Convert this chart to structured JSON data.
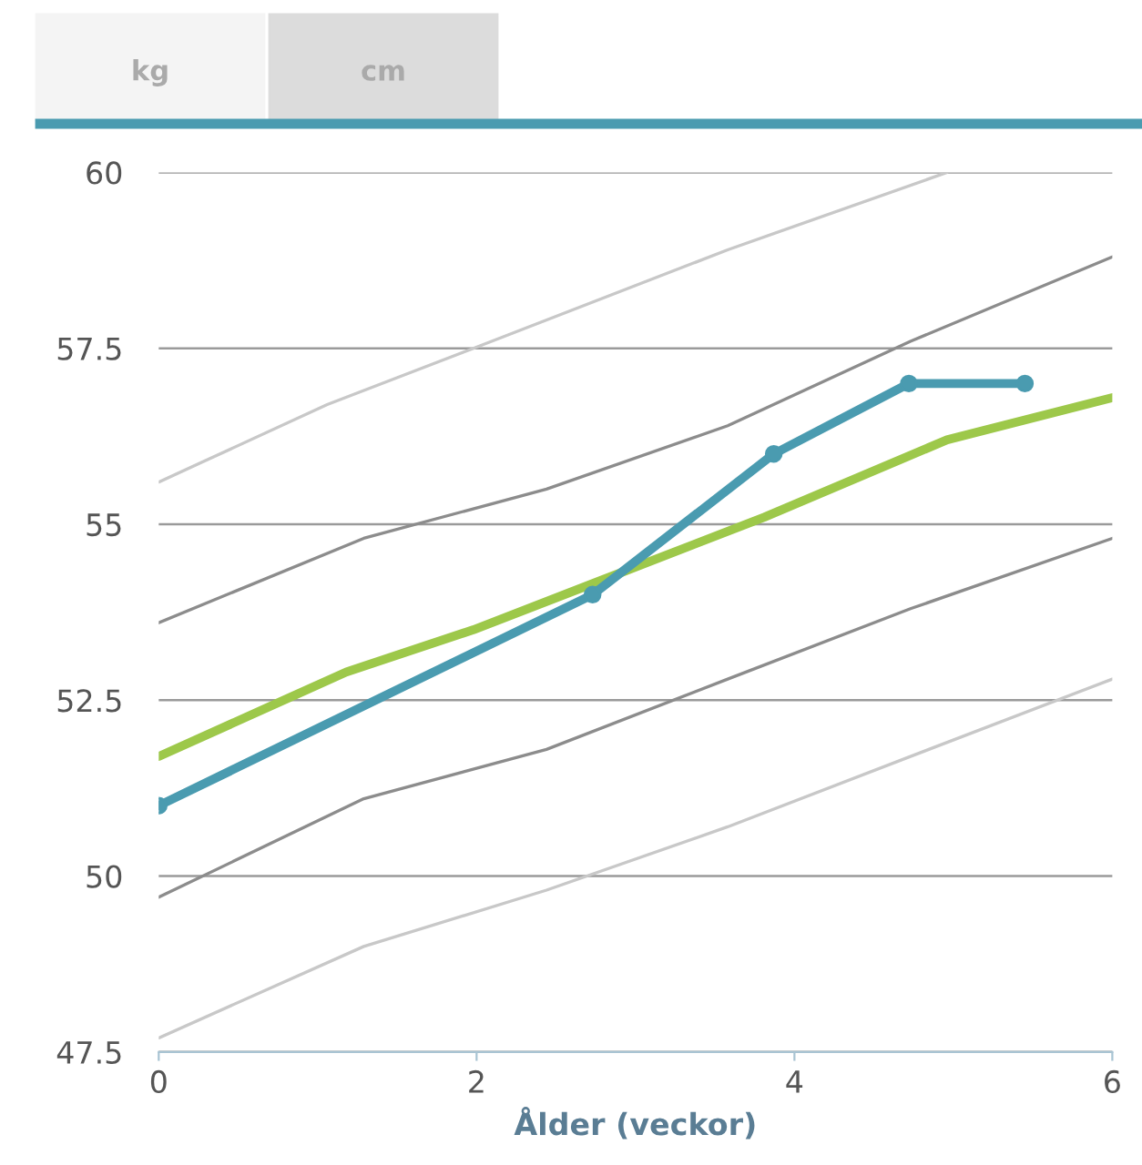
{
  "chart_data": {
    "type": "line",
    "xlabel": "Ålder (veckor)",
    "annotations": [
      "kg",
      "cm"
    ],
    "xlim": [
      0,
      6
    ],
    "xticks": [
      0,
      2,
      4,
      6
    ],
    "ylim": [
      47.5,
      60
    ],
    "yticks": [
      {
        "value": 47.5,
        "label": "47.5"
      },
      50,
      {
        "value": 52.5,
        "label": "52.5"
      },
      55,
      {
        "value": 57.5,
        "label": "57.5"
      },
      60
    ],
    "grid": "y",
    "legend": false,
    "series": [
      {
        "color": "#c8c8c8",
        "marker": "none",
        "x": [
          0,
          1.06,
          1.98,
          3.58,
          4.96
        ],
        "values": [
          55.6,
          56.7,
          57.5,
          58.9,
          60
        ]
      },
      {
        "color": "#8c8c8c",
        "marker": "none",
        "x": [
          0,
          1.29,
          2.44,
          3.58,
          4.73,
          6
        ],
        "values": [
          53.6,
          54.8,
          55.5,
          56.4,
          57.6,
          58.8
        ]
      },
      {
        "color": "#8c8c8c",
        "marker": "none",
        "x": [
          0,
          1.29,
          2.44,
          3.58,
          4.73,
          6
        ],
        "values": [
          49.7,
          51.1,
          51.8,
          52.8,
          53.8,
          54.8
        ]
      },
      {
        "color": "#c8c8c8",
        "marker": "none",
        "x": [
          0,
          1.29,
          2.44,
          3.58,
          4.73,
          6
        ],
        "values": [
          47.7,
          49.0,
          49.8,
          50.7,
          51.7,
          52.8
        ]
      },
      {
        "color": "#9dc84a",
        "marker": "none",
        "x": [
          0,
          1.18,
          1.98,
          2.78,
          3.81,
          4.96,
          6
        ],
        "values": [
          51.7,
          52.9,
          53.5,
          54.2,
          55.1,
          56.2,
          56.8
        ]
      },
      {
        "color": "#4a9bb0",
        "marker": "circle",
        "x": [
          0,
          2.73,
          3.87,
          4.72,
          5.45
        ],
        "values": [
          51,
          54,
          56,
          57,
          57
        ]
      }
    ]
  }
}
